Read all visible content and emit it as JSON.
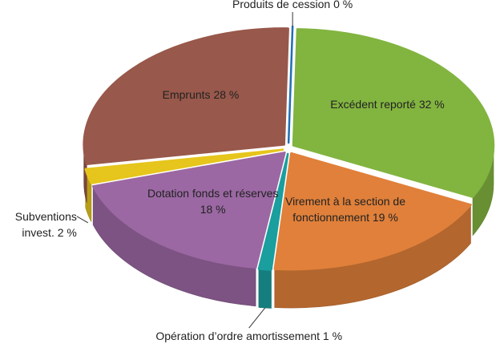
{
  "chart_data": {
    "type": "pie3d",
    "categories": [
      "Excédent reporté",
      "Virement à la section de fonctionnement",
      "Opération d’ordre amortissement",
      "Dotation fonds et réserves",
      "Subventions invest.",
      "Emprunts",
      "Produits de cession"
    ],
    "values": [
      32,
      19,
      1,
      18,
      2,
      28,
      0
    ],
    "value_labels": [
      "32 %",
      "19 %",
      "1 %",
      "18 %",
      "2 %",
      "28 %",
      "0 %"
    ],
    "colors": [
      "#82b440",
      "#e0803a",
      "#1a9e9e",
      "#9b68a3",
      "#e6c51c",
      "#98584b",
      "#1f6fb5"
    ]
  }
}
